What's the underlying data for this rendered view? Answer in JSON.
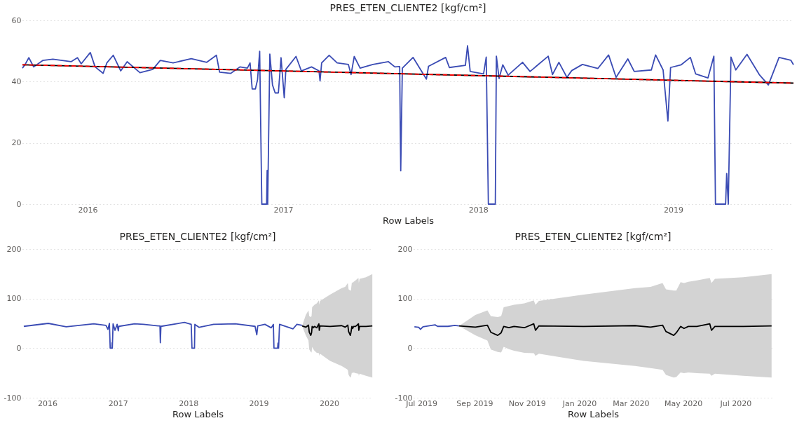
{
  "chart_data": [
    {
      "type": "line",
      "title": "PRES_ETEN_CLIENTE2 [kgf/cm²]",
      "xlabel": "Row Labels",
      "xlim": [
        "2015-09-01",
        "2019-08-14"
      ],
      "xticks": [
        "2016",
        "2017",
        "2018",
        "2019"
      ],
      "ylim": [
        0,
        60
      ],
      "yticks": [
        0,
        20,
        40,
        60
      ],
      "grid": "y",
      "series": [
        {
          "type": "line",
          "color": "#3a4bb4",
          "line_style": "solid",
          "x": [
            "2015-09-01",
            "2015-09-06",
            "2015-09-13",
            "2015-09-22",
            "2015-10-09",
            "2015-10-28",
            "2015-12-01",
            "2015-12-13",
            "2015-12-20",
            "2016-01-06",
            "2016-01-15",
            "2016-01-30",
            "2016-02-06",
            "2016-02-18",
            "2016-03-03",
            "2016-03-15",
            "2016-04-08",
            "2016-05-02",
            "2016-05-16",
            "2016-06-09",
            "2016-07-13",
            "2016-08-11",
            "2016-08-29",
            "2016-09-04",
            "2016-09-25",
            "2016-10-12",
            "2016-10-26",
            "2016-10-31",
            "2016-11-04",
            "2016-11-10",
            "2016-11-14",
            "2016-11-18",
            "2016-11-22",
            "2016-12-01",
            "2016-12-02",
            "2016-12-03",
            "2016-12-07",
            "2016-12-12",
            "2016-12-17",
            "2016-12-23",
            "2016-12-28",
            "2017-01-03",
            "2017-01-06",
            "2017-01-25",
            "2017-02-04",
            "2017-02-23",
            "2017-03-09",
            "2017-03-11",
            "2017-03-14",
            "2017-03-28",
            "2017-04-12",
            "2017-05-03",
            "2017-05-08",
            "2017-05-14",
            "2017-05-25",
            "2017-06-18",
            "2017-07-17",
            "2017-07-29",
            "2017-08-07",
            "2017-08-09",
            "2017-08-12",
            "2017-09-01",
            "2017-09-26",
            "2017-09-30",
            "2017-11-01",
            "2017-11-08",
            "2017-12-08",
            "2017-12-12",
            "2017-12-17",
            "2018-01-11",
            "2018-01-16",
            "2018-01-20",
            "2018-02-02",
            "2018-02-04",
            "2018-02-09",
            "2018-02-16",
            "2018-02-26",
            "2018-03-25",
            "2018-04-08",
            "2018-05-12",
            "2018-05-20",
            "2018-06-01",
            "2018-06-16",
            "2018-06-25",
            "2018-07-15",
            "2018-08-13",
            "2018-09-02",
            "2018-09-16",
            "2018-10-08",
            "2018-10-20",
            "2018-11-21",
            "2018-11-29",
            "2018-12-13",
            "2018-12-22",
            "2018-12-27",
            "2019-01-16",
            "2019-02-02",
            "2019-02-12",
            "2019-03-07",
            "2019-03-18",
            "2019-03-21",
            "2019-04-09",
            "2019-04-11",
            "2019-04-14",
            "2019-04-19",
            "2019-04-28",
            "2019-05-19",
            "2019-06-11",
            "2019-06-28",
            "2019-07-18",
            "2019-08-09",
            "2019-08-14"
          ],
          "values": [
            44.4,
            45.6,
            47.8,
            44.8,
            46.9,
            47.3,
            46.5,
            47.8,
            45.8,
            49.5,
            44.8,
            42.7,
            46.1,
            48.6,
            43.5,
            46.5,
            42.9,
            44.0,
            46.9,
            46.1,
            47.5,
            46.3,
            48.6,
            43.1,
            42.7,
            44.8,
            44.4,
            46.1,
            37.6,
            37.6,
            40.6,
            49.9,
            0,
            0,
            11,
            0,
            49,
            38.9,
            36.3,
            36.3,
            47.8,
            34.7,
            44.0,
            48.2,
            43.5,
            44.8,
            43.5,
            40.2,
            46.1,
            48.6,
            46.1,
            45.6,
            42.3,
            48.2,
            44.4,
            45.6,
            46.5,
            44.8,
            44.9,
            10.9,
            44.4,
            47.9,
            40.8,
            45.0,
            47.9,
            44.6,
            45.3,
            51.7,
            43.3,
            42.5,
            48.0,
            0,
            0,
            48.3,
            41.0,
            45.5,
            42.1,
            46.3,
            43.3,
            48.3,
            42.3,
            46.3,
            41.4,
            43.6,
            45.6,
            44.3,
            48.7,
            41.4,
            47.4,
            43.3,
            43.8,
            48.7,
            43.8,
            27.1,
            44.6,
            45.5,
            47.9,
            42.5,
            41.2,
            48.3,
            0,
            0,
            10,
            0,
            48.0,
            43.8,
            48.9,
            42.3,
            38.9,
            47.9,
            47.0,
            45.5
          ]
        },
        {
          "type": "line",
          "color": "#000000",
          "line_style": "solid",
          "x": [
            "2015-09-01",
            "2019-08-14"
          ],
          "values": [
            45.5,
            39.5
          ]
        },
        {
          "type": "line",
          "color": "#ff0000",
          "line_style": "dashed",
          "x": [
            "2015-09-01",
            "2019-08-14"
          ],
          "values": [
            45.5,
            39.5
          ]
        }
      ]
    },
    {
      "type": "line",
      "title": "PRES_ETEN_CLIENTE2 [kgf/cm²]",
      "xlabel": "Row Labels",
      "xlim": [
        "2015-08-25",
        "2020-08-15"
      ],
      "xticks": [
        "2016",
        "2017",
        "2018",
        "2019",
        "2020"
      ],
      "ylim": [
        -100,
        200
      ],
      "yticks": [
        -100,
        0,
        100,
        200
      ],
      "grid": "y",
      "series": [
        {
          "type": "line",
          "color": "#3a4bb4",
          "line_style": "solid",
          "x": [
            "2015-09-01",
            "2016-01-06",
            "2016-04-08",
            "2016-08-29",
            "2016-10-31",
            "2016-11-10",
            "2016-11-18",
            "2016-11-22",
            "2016-12-01",
            "2016-12-02",
            "2016-12-03",
            "2016-12-07",
            "2016-12-17",
            "2016-12-28",
            "2017-01-03",
            "2017-01-06",
            "2017-03-28",
            "2017-05-14",
            "2017-07-29",
            "2017-08-07",
            "2017-08-09",
            "2017-08-12",
            "2017-12-12",
            "2018-01-16",
            "2018-01-20",
            "2018-02-02",
            "2018-02-04",
            "2018-02-26",
            "2018-05-12",
            "2018-09-02",
            "2018-12-13",
            "2018-12-22",
            "2018-12-27",
            "2019-02-02",
            "2019-03-07",
            "2019-03-18",
            "2019-03-21",
            "2019-04-09",
            "2019-04-11",
            "2019-04-14",
            "2019-04-19",
            "2019-06-28",
            "2019-07-18",
            "2019-08-14"
          ],
          "values": [
            44,
            50,
            43,
            49,
            46,
            38,
            50,
            0,
            0,
            11,
            0,
            49,
            36,
            48,
            35,
            44,
            49,
            48,
            45,
            45,
            11,
            44,
            52,
            48,
            0,
            0,
            48,
            42,
            48,
            49,
            44,
            27,
            45,
            48,
            41,
            48,
            0,
            0,
            10,
            0,
            48,
            39,
            48,
            46
          ]
        },
        {
          "type": "line",
          "color": "#000000",
          "line_style": "solid",
          "x": [
            "2019-08-14",
            "2019-09-02",
            "2019-09-16",
            "2019-09-20",
            "2019-09-28",
            "2019-10-02",
            "2019-10-05",
            "2019-10-11",
            "2019-10-17",
            "2019-10-29",
            "2019-11-09",
            "2019-11-11",
            "2019-11-15",
            "2020-01-06",
            "2020-03-06",
            "2020-03-24",
            "2020-04-07",
            "2020-04-11",
            "2020-04-20",
            "2020-04-23",
            "2020-04-28",
            "2020-05-02",
            "2020-05-07",
            "2020-05-17",
            "2020-06-01",
            "2020-06-03",
            "2020-06-07",
            "2020-07-10",
            "2020-08-12"
          ],
          "values": [
            44.8,
            42.3,
            46.4,
            32,
            25.8,
            31,
            43.8,
            41.2,
            43.8,
            41.2,
            49,
            36,
            44.8,
            43.8,
            45.4,
            42.3,
            46.4,
            33.5,
            25.8,
            31,
            43.8,
            39.7,
            43.8,
            43.8,
            49,
            36,
            43.8,
            43.8,
            44.8
          ],
          "upper": [
            44.8,
            67,
            76.3,
            64.4,
            62.9,
            64.4,
            82.5,
            85,
            87.6,
            90.2,
            96.4,
            87.6,
            95.4,
            108,
            121,
            123.7,
            131.4,
            118.6,
            116,
            116,
            133,
            131.4,
            134,
            136.6,
            141.8,
            131.4,
            140,
            143,
            149.5
          ],
          "lower": [
            44.8,
            25.8,
            15.5,
            -2.6,
            -7.7,
            -8.8,
            2.6,
            -2,
            -5.2,
            -9.3,
            -10.3,
            -15.5,
            -11.3,
            -25.8,
            -36,
            -40.2,
            -43.8,
            -54,
            -59.3,
            -58.2,
            -49,
            -50.5,
            -49,
            -50.5,
            -51.5,
            -55.7,
            -51.5,
            -55.7,
            -59.3
          ]
        }
      ]
    },
    {
      "type": "line",
      "title": "PRES_ETEN_CLIENTE2 [kgf/cm²]",
      "xlabel": "Row Labels",
      "xlim": [
        "2019-06-22",
        "2020-08-13"
      ],
      "xticks": [
        {
          "value": "2019-07",
          "label": "Jul 2019"
        },
        {
          "value": "2019-09",
          "label": "Sep 2019"
        },
        {
          "value": "2019-11",
          "label": "Nov 2019"
        },
        {
          "value": "2020-01",
          "label": "Jan 2020"
        },
        {
          "value": "2020-03",
          "label": "Mar 2020"
        },
        {
          "value": "2020-05",
          "label": "May 2020"
        },
        {
          "value": "2020-07",
          "label": "Jul 2020"
        }
      ],
      "ylim": [
        -100,
        200
      ],
      "yticks": [
        -100,
        0,
        100,
        200
      ],
      "grid": "y",
      "series": [
        {
          "type": "line",
          "color": "#3a4bb4",
          "line_style": "solid",
          "x": [
            "2019-06-23",
            "2019-06-28",
            "2019-06-30",
            "2019-07-03",
            "2019-07-17",
            "2019-07-20",
            "2019-08-01",
            "2019-08-09",
            "2019-08-14"
          ],
          "values": [
            43,
            42,
            38,
            43,
            47,
            44,
            44,
            46,
            45
          ]
        },
        {
          "type": "line",
          "color": "#000000",
          "line_style": "solid",
          "x": [
            "2019-08-14",
            "2019-09-02",
            "2019-09-16",
            "2019-09-20",
            "2019-09-28",
            "2019-10-02",
            "2019-10-05",
            "2019-10-11",
            "2019-10-17",
            "2019-10-29",
            "2019-11-09",
            "2019-11-11",
            "2019-11-15",
            "2020-01-06",
            "2020-03-06",
            "2020-03-24",
            "2020-04-07",
            "2020-04-11",
            "2020-04-20",
            "2020-04-23",
            "2020-04-28",
            "2020-05-02",
            "2020-05-07",
            "2020-05-17",
            "2020-06-01",
            "2020-06-03",
            "2020-06-07",
            "2020-07-10",
            "2020-08-12"
          ],
          "values": [
            44.8,
            42.3,
            46.4,
            32,
            25.8,
            31,
            43.8,
            41.2,
            43.8,
            41.2,
            49,
            36,
            44.8,
            43.8,
            45.4,
            42.3,
            46.4,
            33.5,
            25.8,
            31,
            43.8,
            39.7,
            43.8,
            43.8,
            49,
            36,
            43.8,
            43.8,
            44.8
          ],
          "upper": [
            44.8,
            67,
            76.3,
            64.4,
            62.9,
            64.4,
            82.5,
            85,
            87.6,
            90.2,
            96.4,
            87.6,
            95.4,
            108,
            121,
            123.7,
            131.4,
            118.6,
            116,
            116,
            133,
            131.4,
            134,
            136.6,
            141.8,
            131.4,
            140,
            143,
            149.5
          ],
          "lower": [
            44.8,
            25.8,
            15.5,
            -2.6,
            -7.7,
            -8.8,
            2.6,
            -2,
            -5.2,
            -9.3,
            -10.3,
            -15.5,
            -11.3,
            -25.8,
            -36,
            -40.2,
            -43.8,
            -54,
            -59.3,
            -58.2,
            -49,
            -50.5,
            -49,
            -50.5,
            -51.5,
            -55.7,
            -51.5,
            -55.7,
            -59.3
          ]
        }
      ]
    }
  ]
}
